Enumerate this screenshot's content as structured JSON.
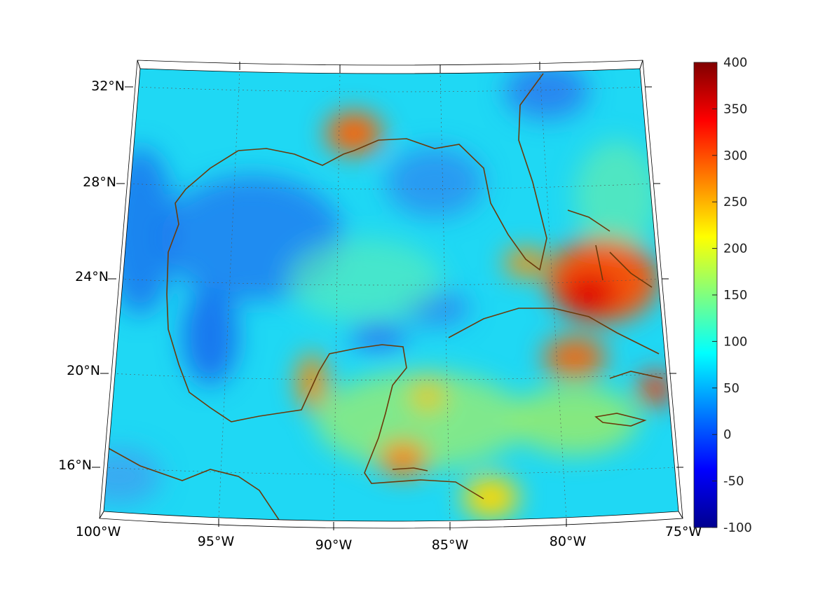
{
  "map": {
    "projection": "lambert",
    "lat_labels": [
      "32°N",
      "28°N",
      "24°N",
      "20°N",
      "16°N"
    ],
    "lon_labels": [
      "100°W",
      "95°W",
      "90°W",
      "85°W",
      "80°W",
      "75°W"
    ],
    "lon_range": [
      -100,
      -75
    ],
    "lat_range": [
      14.5,
      33
    ],
    "coastline_color": "#6b3a0a"
  },
  "colorbar": {
    "colormap": "jet",
    "range": [
      -100,
      400
    ],
    "ticks": [
      "400",
      "350",
      "300",
      "250",
      "200",
      "150",
      "100",
      "50",
      "0",
      "-50",
      "-100"
    ]
  }
}
